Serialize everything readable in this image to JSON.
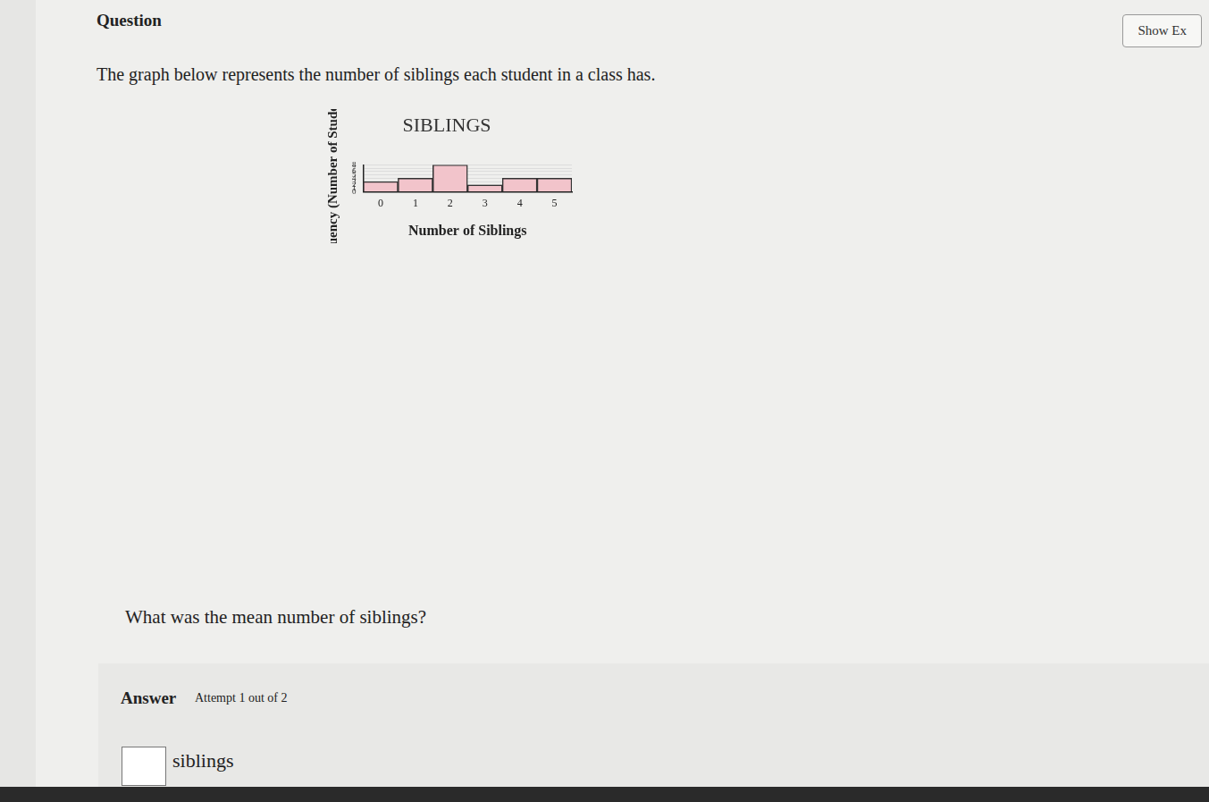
{
  "page": {
    "label": "Question",
    "button": "Show Ex",
    "prompt": "The graph below represents the number of siblings each student in a class has.",
    "question": "What was the mean number of siblings?",
    "answer_label": "Answer",
    "attempt": "Attempt 1 out of 2",
    "unit": "siblings"
  },
  "chart_data": {
    "type": "bar",
    "title": "SIBLINGS",
    "x_label": "Number of Siblings",
    "y_label": "Frequency (Number of Students)",
    "categories": [
      "0",
      "1",
      "2",
      "3",
      "4",
      "5"
    ],
    "values": [
      3,
      4,
      8,
      2,
      4,
      4
    ],
    "color": "#f2c4cb",
    "ylim": [
      0,
      8
    ],
    "yticks": [
      0,
      1,
      2,
      3,
      4,
      5,
      6,
      7,
      8
    ],
    "grid": true
  }
}
